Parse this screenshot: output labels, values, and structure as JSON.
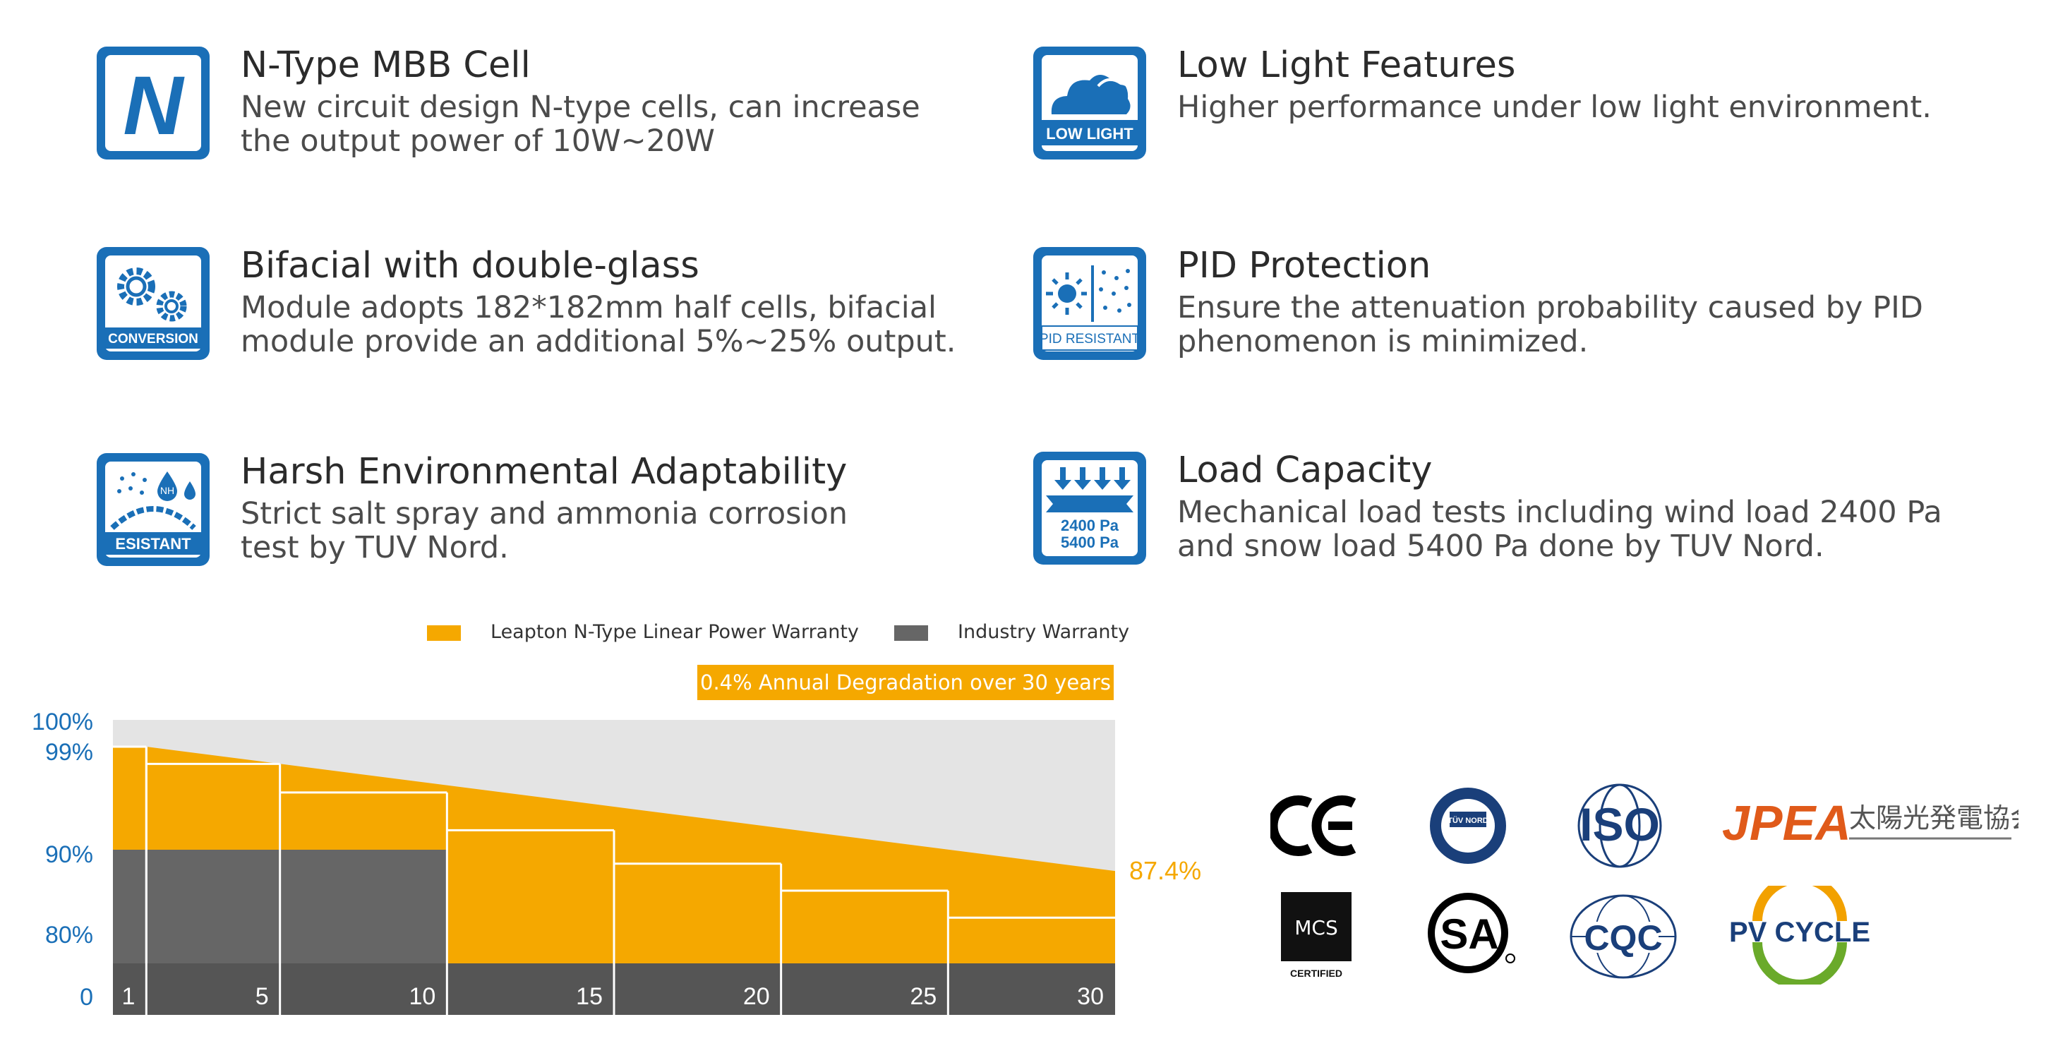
{
  "features": [
    {
      "title": "N-Type MBB Cell",
      "desc": "New circuit design N-type cells, can increase\nthe output power of 10W~20W",
      "icon": "n-type-icon",
      "icon_text": "N"
    },
    {
      "title": "Low Light Features",
      "desc": "Higher performance under low light environment.",
      "icon": "low-light-icon",
      "icon_text": "LOW LIGHT"
    },
    {
      "title": "Bifacial with double-glass",
      "desc": "Module adopts 182*182mm half cells, bifacial\nmodule provide an additional 5%~25% output.",
      "icon": "conversion-icon",
      "icon_text": "CONVERSION"
    },
    {
      "title": "PID Protection",
      "desc": "Ensure the attenuation probability caused by PID\nphenomenon is minimized.",
      "icon": "pid-resistant-icon",
      "icon_text": "PID RESISTANT"
    },
    {
      "title": "Harsh Environmental Adaptability",
      "desc": "Strict salt spray and ammonia corrosion\ntest by TUV Nord.",
      "icon": "resistant-icon",
      "icon_text": "ESISTANT",
      "icon_sub": "NH"
    },
    {
      "title": "Load Capacity",
      "desc": "Mechanical load tests including wind load 2400 Pa\nand snow load 5400 Pa done by TUV Nord.",
      "icon": "load-capacity-icon",
      "icon_text": "2400 Pa",
      "icon_text2": "5400 Pa"
    }
  ],
  "colors": {
    "brand_blue": "#1a6fb7",
    "leapton_orange": "#f5a800",
    "industry_gray": "#666666",
    "background_gray": "#e4e4e4",
    "axis_blue": "#1a6fb7"
  },
  "legend": {
    "leapton": "Leapton N-Type Linear Power Warranty",
    "industry": "Industry Warranty"
  },
  "degradation_label": "0.4% Annual Degradation over 30 years",
  "chart_data": {
    "type": "area",
    "title": "",
    "xlabel": "",
    "ylabel": "",
    "x_ticks": [
      "1",
      "5",
      "10",
      "15",
      "20",
      "25",
      "30"
    ],
    "y_ticks": [
      "100%",
      "99%",
      "90%",
      "80%",
      "0"
    ],
    "end_label": "87.4%",
    "series": [
      {
        "name": "Leapton N-Type Linear Power Warranty",
        "x": [
          0,
          1,
          30
        ],
        "y": [
          99,
          99,
          87.4
        ]
      },
      {
        "name": "Industry Warranty",
        "x": [
          0,
          1,
          1,
          5,
          5,
          10,
          10,
          15,
          15,
          20,
          20,
          25,
          25,
          30
        ],
        "y": [
          97.5,
          97.5,
          97.5,
          95,
          95,
          91.7,
          91.7,
          88.3,
          88.3,
          85,
          85,
          81.7,
          81.7,
          80
        ]
      }
    ],
    "step_segments": [
      {
        "from": 0,
        "to": 1,
        "value": 99
      },
      {
        "from": 1,
        "to": 5,
        "value": 97.5
      },
      {
        "from": 5,
        "to": 10,
        "value": 95
      },
      {
        "from": 10,
        "to": 15,
        "value": 91.7
      },
      {
        "from": 15,
        "to": 20,
        "value": 88.3
      },
      {
        "from": 20,
        "to": 25,
        "value": 85
      },
      {
        "from": 25,
        "to": 30,
        "value": 81.7
      }
    ],
    "gray_block": {
      "x_from": 0,
      "x_to": 10,
      "y_top": 90
    },
    "ylim_display": [
      "0",
      "100%"
    ],
    "grid": true
  },
  "certifications": [
    {
      "name": "ce-logo",
      "text": "CE"
    },
    {
      "name": "tuv-nord-logo",
      "text": "TÜV NORD"
    },
    {
      "name": "iso-logo",
      "text": "ISO"
    },
    {
      "name": "jpea-logo",
      "text": "JPEA",
      "subtext": "太陽光発電協会"
    },
    {
      "name": "mcs-logo",
      "text": "MCS",
      "subtext": "CERTIFIED"
    },
    {
      "name": "csa-logo",
      "text": "SA"
    },
    {
      "name": "cqc-logo",
      "text": "CQC"
    },
    {
      "name": "pv-cycle-logo",
      "text": "PV CYCLE"
    }
  ]
}
